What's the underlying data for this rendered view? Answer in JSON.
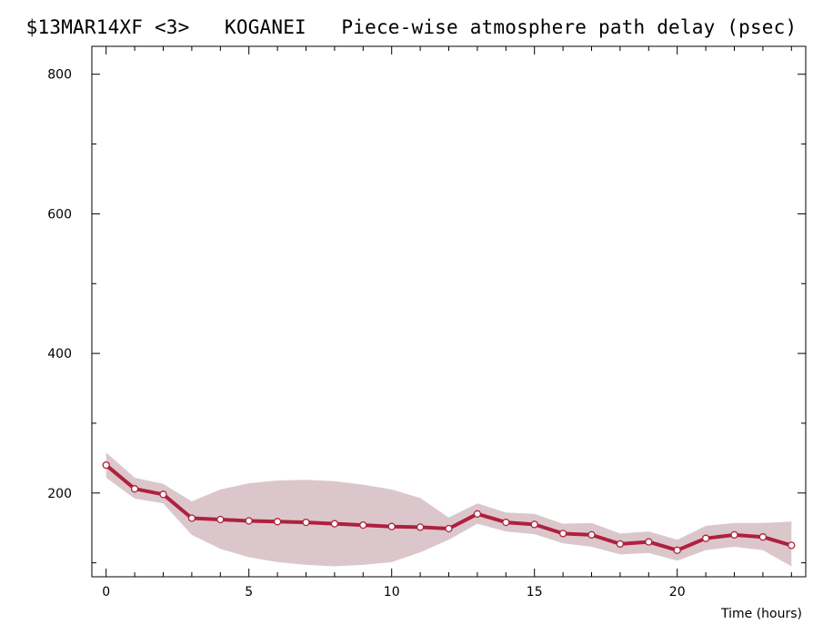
{
  "chart_data": {
    "type": "line",
    "title": "$13MAR14XF <3>   KOGANEI   Piece-wise atmosphere path delay (psec)",
    "xlabel": "Time (hours)",
    "ylabel": "",
    "xlim": [
      -0.5,
      24.5
    ],
    "ylim": [
      80,
      840
    ],
    "xticks": [
      0,
      5,
      10,
      15,
      20
    ],
    "yticks": [
      200,
      400,
      600,
      800
    ],
    "yminorticks": [
      100,
      300,
      500,
      700
    ],
    "grid": false,
    "colors": {
      "line": "#b0203f",
      "band": "#dbc7cb",
      "marker_fill": "#ffffff"
    },
    "series": [
      {
        "x": [
          0,
          1,
          2,
          3,
          4,
          5,
          6,
          7,
          8,
          9,
          10,
          11,
          12,
          13,
          14,
          15,
          16,
          17,
          18,
          19,
          20,
          21,
          22,
          23,
          24
        ],
        "values": [
          240,
          206,
          198,
          164,
          162,
          160,
          159,
          158,
          156,
          154,
          152,
          151,
          149,
          170,
          158,
          155,
          142,
          140,
          127,
          130,
          118,
          135,
          140,
          137,
          125
        ],
        "band": {
          "x": [
            0,
            1,
            2,
            3,
            4,
            5,
            6,
            7,
            8,
            9,
            10,
            11,
            12,
            13,
            14,
            15,
            16,
            17,
            18,
            19,
            20,
            21,
            22,
            23,
            24
          ],
          "upper": [
            258,
            222,
            213,
            188,
            205,
            214,
            218,
            219,
            217,
            212,
            205,
            193,
            165,
            185,
            172,
            170,
            156,
            157,
            142,
            145,
            133,
            153,
            157,
            157,
            159
          ],
          "lower": [
            222,
            192,
            185,
            140,
            120,
            108,
            101,
            97,
            95,
            97,
            101,
            115,
            133,
            156,
            145,
            141,
            128,
            123,
            112,
            114,
            103,
            118,
            123,
            118,
            95
          ]
        }
      }
    ]
  }
}
